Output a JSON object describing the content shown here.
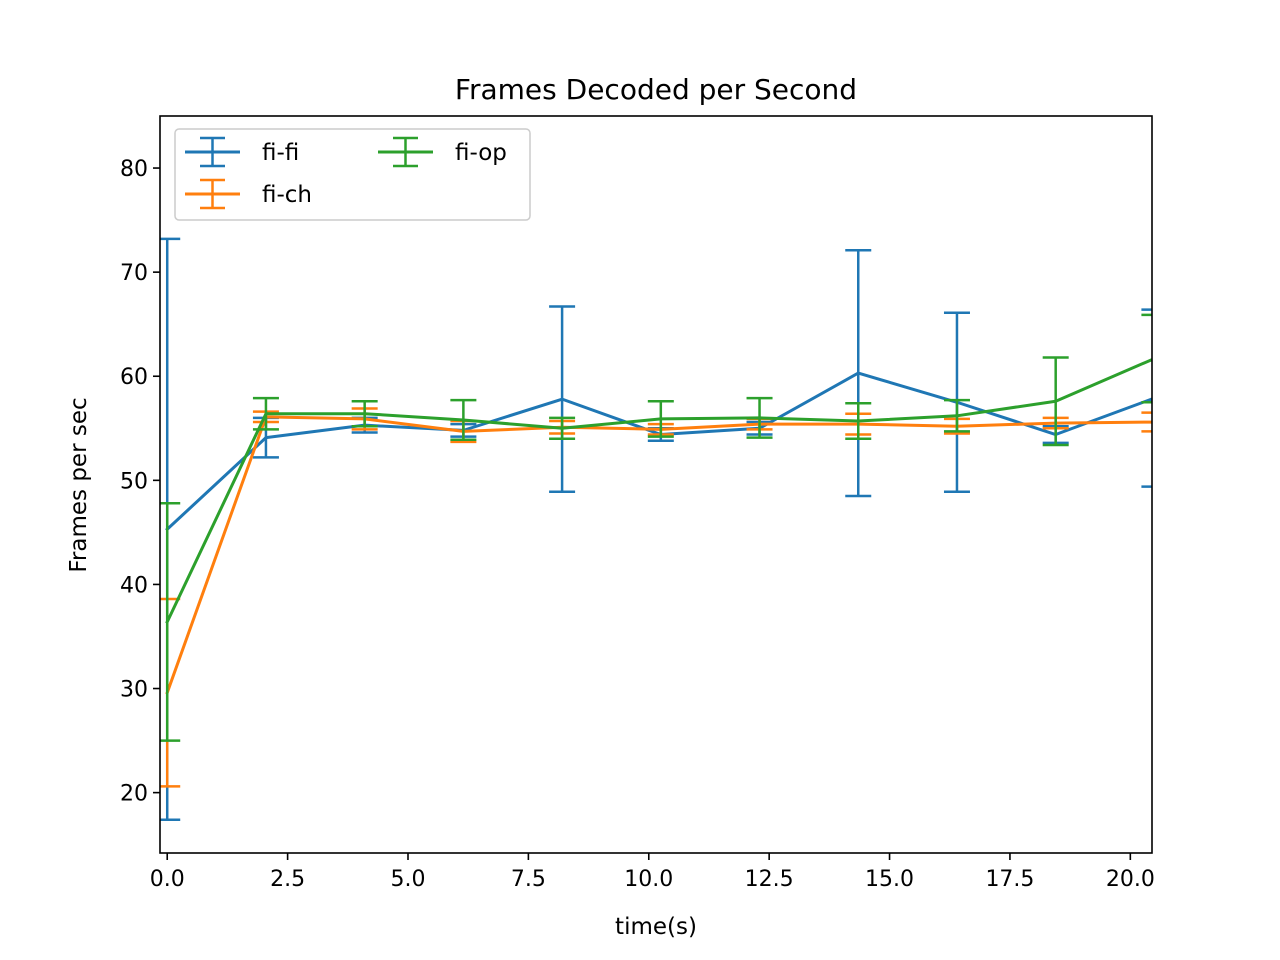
{
  "chart_data": {
    "type": "line",
    "title": "Frames Decoded per Second",
    "xlabel": "time(s)",
    "ylabel": "Frames per sec",
    "xlim": [
      -0.15,
      20.45
    ],
    "ylim": [
      14.2,
      85
    ],
    "xticks": [
      0.0,
      2.5,
      5.0,
      7.5,
      10.0,
      12.5,
      15.0,
      17.5,
      20.0
    ],
    "xtick_labels": [
      "0.0",
      "2.5",
      "5.0",
      "7.5",
      "10.0",
      "12.5",
      "15.0",
      "17.5",
      "20.0"
    ],
    "yticks": [
      20,
      30,
      40,
      50,
      60,
      70,
      80
    ],
    "ytick_labels": [
      "20",
      "30",
      "40",
      "50",
      "60",
      "70",
      "80"
    ],
    "grid": false,
    "legend_position": "top-left",
    "error_bars": true,
    "series": [
      {
        "name": "fi-fi",
        "color": "#1f77b4",
        "x": [
          0.0,
          2.05,
          4.1,
          6.15,
          8.2,
          10.25,
          12.3,
          14.35,
          16.4,
          18.45,
          20.5
        ],
        "values": [
          45.3,
          54.1,
          55.3,
          54.8,
          57.8,
          54.4,
          55.0,
          60.3,
          57.5,
          54.4,
          57.9
        ],
        "errors": [
          27.9,
          1.9,
          0.7,
          0.6,
          8.9,
          0.6,
          0.6,
          11.8,
          8.6,
          0.8,
          8.5
        ]
      },
      {
        "name": "fi-ch",
        "color": "#ff7f0e",
        "x": [
          0.0,
          2.05,
          4.1,
          6.15,
          8.2,
          10.25,
          12.3,
          14.35,
          16.4,
          18.45,
          20.5
        ],
        "values": [
          29.6,
          56.1,
          55.9,
          54.7,
          55.1,
          54.9,
          55.4,
          55.4,
          55.2,
          55.5,
          55.6
        ],
        "errors": [
          9.0,
          0.5,
          1.0,
          1.0,
          0.6,
          0.5,
          0.5,
          1.0,
          0.7,
          0.5,
          0.9
        ]
      },
      {
        "name": "fi-op",
        "color": "#2ca02c",
        "x": [
          0.0,
          2.05,
          4.1,
          6.15,
          8.2,
          10.25,
          12.3,
          14.35,
          16.4,
          18.45,
          20.5
        ],
        "values": [
          36.4,
          56.4,
          56.4,
          55.8,
          55.0,
          55.9,
          56.0,
          55.7,
          56.2,
          57.6,
          61.7
        ],
        "errors": [
          11.4,
          1.5,
          1.2,
          1.9,
          1.0,
          1.7,
          1.9,
          1.7,
          1.5,
          4.2,
          4.2
        ]
      }
    ]
  }
}
